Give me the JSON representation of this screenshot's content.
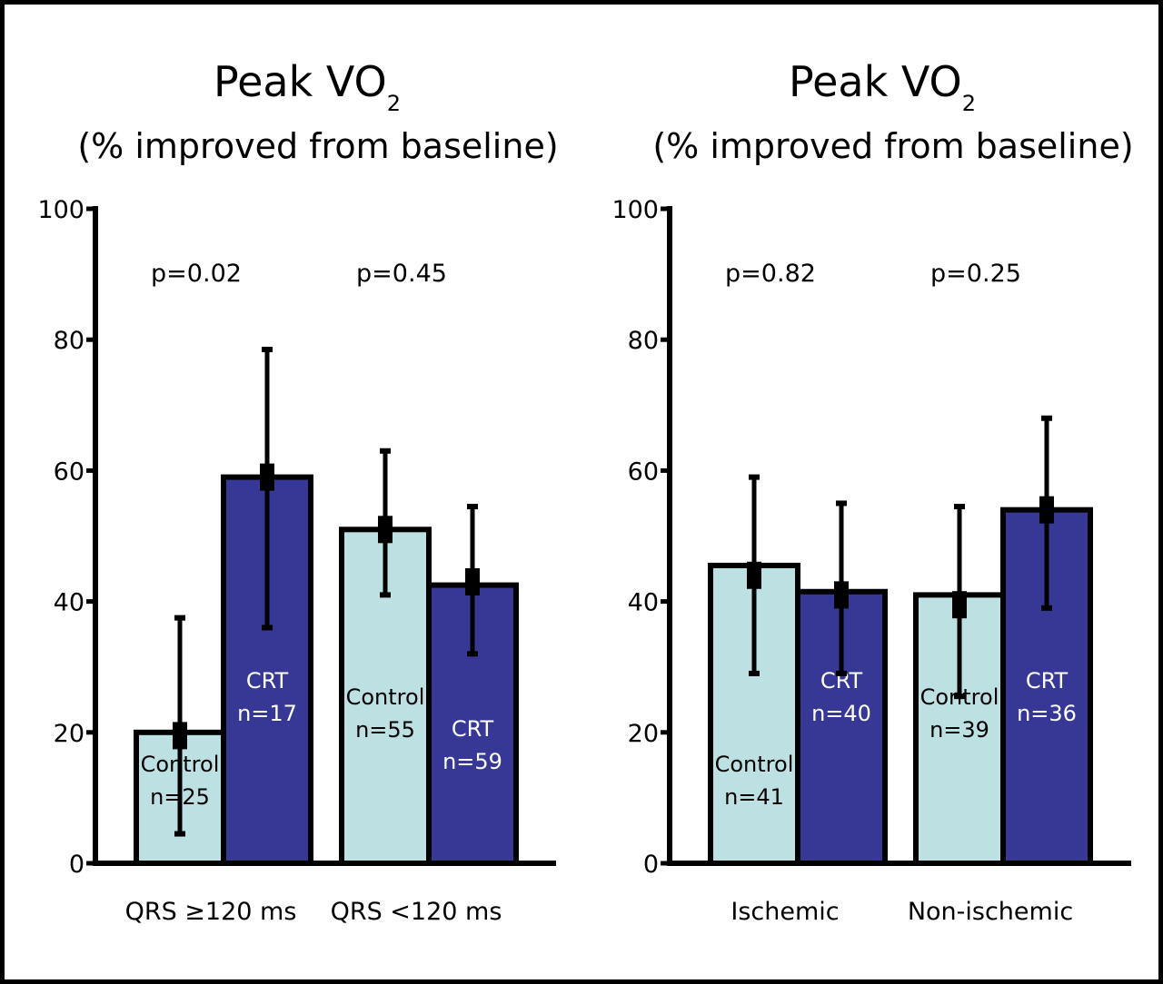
{
  "chart_data": [
    {
      "type": "bar",
      "title": "Peak VO2",
      "title_main": "Peak VO",
      "title_subscript": "2",
      "subtitle": "(% improved from baseline)",
      "xlabel": "",
      "ylabel": "",
      "ylim": [
        0,
        100
      ],
      "yticks": [
        0,
        20,
        40,
        60,
        80,
        100
      ],
      "ytick_labels": [
        "0",
        "20",
        "40",
        "60",
        "80",
        "100"
      ],
      "grid": false,
      "categories": [
        "QRS ≥120 ms",
        "QRS <120 ms"
      ],
      "p_values": [
        "p=0.02",
        "p=0.45"
      ],
      "series": [
        {
          "name": "Control",
          "color": "#bde0e3",
          "label_color": "#000000",
          "values": [
            20,
            51
          ],
          "means": [
            19.5,
            51
          ],
          "error_low": [
            4.5,
            41
          ],
          "error_high": [
            37.5,
            63
          ],
          "labels": [
            [
              "Control",
              "n=25"
            ],
            [
              "Control",
              "n=55"
            ]
          ]
        },
        {
          "name": "CRT",
          "color": "#373896",
          "label_color": "#ffffff",
          "values": [
            59,
            42.5
          ],
          "means": [
            59,
            43
          ],
          "error_low": [
            36,
            32
          ],
          "error_high": [
            78.5,
            54.5
          ],
          "labels": [
            [
              "CRT",
              "n=17"
            ],
            [
              "CRT",
              "n=59"
            ]
          ]
        }
      ]
    },
    {
      "type": "bar",
      "title": "Peak VO2",
      "title_main": "Peak VO",
      "title_subscript": "2",
      "subtitle": "(% improved from baseline)",
      "xlabel": "",
      "ylabel": "",
      "ylim": [
        0,
        100
      ],
      "yticks": [
        0,
        20,
        40,
        60,
        80,
        100
      ],
      "ytick_labels": [
        "0",
        "20",
        "40",
        "60",
        "80",
        "100"
      ],
      "grid": false,
      "categories": [
        "Ischemic",
        "Non-ischemic"
      ],
      "p_values": [
        "p=0.82",
        "p=0.25"
      ],
      "series": [
        {
          "name": "Control",
          "color": "#bde0e3",
          "label_color": "#000000",
          "values": [
            45.5,
            41
          ],
          "means": [
            44,
            39.5
          ],
          "error_low": [
            29,
            25.5
          ],
          "error_high": [
            59,
            54.5
          ],
          "labels": [
            [
              "Control",
              "n=41"
            ],
            [
              "Control",
              "n=39"
            ]
          ]
        },
        {
          "name": "CRT",
          "color": "#373896",
          "label_color": "#ffffff",
          "values": [
            41.5,
            54
          ],
          "means": [
            41,
            54
          ],
          "error_low": [
            29,
            39
          ],
          "error_high": [
            55,
            68
          ],
          "labels": [
            [
              "CRT",
              "n=40"
            ],
            [
              "CRT",
              "n=36"
            ]
          ]
        }
      ]
    }
  ]
}
